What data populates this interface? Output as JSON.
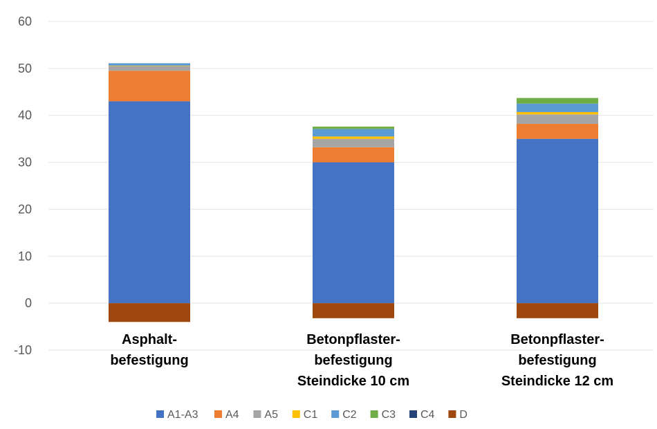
{
  "chart_data": {
    "type": "bar",
    "stacked": true,
    "title": "",
    "xlabel": "",
    "ylabel": "",
    "ylim": [
      -10,
      60
    ],
    "yticks": [
      60,
      50,
      40,
      30,
      20,
      10,
      0,
      -10
    ],
    "grid": true,
    "legend_position": "bottom",
    "categories": [
      [
        "Asphalt-",
        "befestigung"
      ],
      [
        "Betonpflaster-",
        "befestigung",
        "Steindicke 10 cm"
      ],
      [
        "Betonpflaster-",
        "befestigung",
        "Steindicke 12 cm"
      ]
    ],
    "series": [
      {
        "name": "A1-A3",
        "color": "#4472C4",
        "values": [
          43,
          30,
          35
        ]
      },
      {
        "name": "A4",
        "color": "#ED7D31",
        "values": [
          6.5,
          3.2,
          3.2
        ]
      },
      {
        "name": "A5",
        "color": "#A5A5A5",
        "values": [
          1.0,
          1.8,
          2.0
        ]
      },
      {
        "name": "C1",
        "color": "#FFC000",
        "values": [
          0.1,
          0.5,
          0.5
        ]
      },
      {
        "name": "C2",
        "color": "#5B9BD5",
        "values": [
          0.5,
          1.6,
          1.8
        ]
      },
      {
        "name": "C3",
        "color": "#70AD47",
        "values": [
          0,
          0.5,
          1.2
        ]
      },
      {
        "name": "C4",
        "color": "#264478",
        "values": [
          0,
          0,
          0
        ]
      },
      {
        "name": "D",
        "color": "#9E480E",
        "values": [
          -4,
          -3.2,
          -3.2
        ]
      }
    ]
  }
}
